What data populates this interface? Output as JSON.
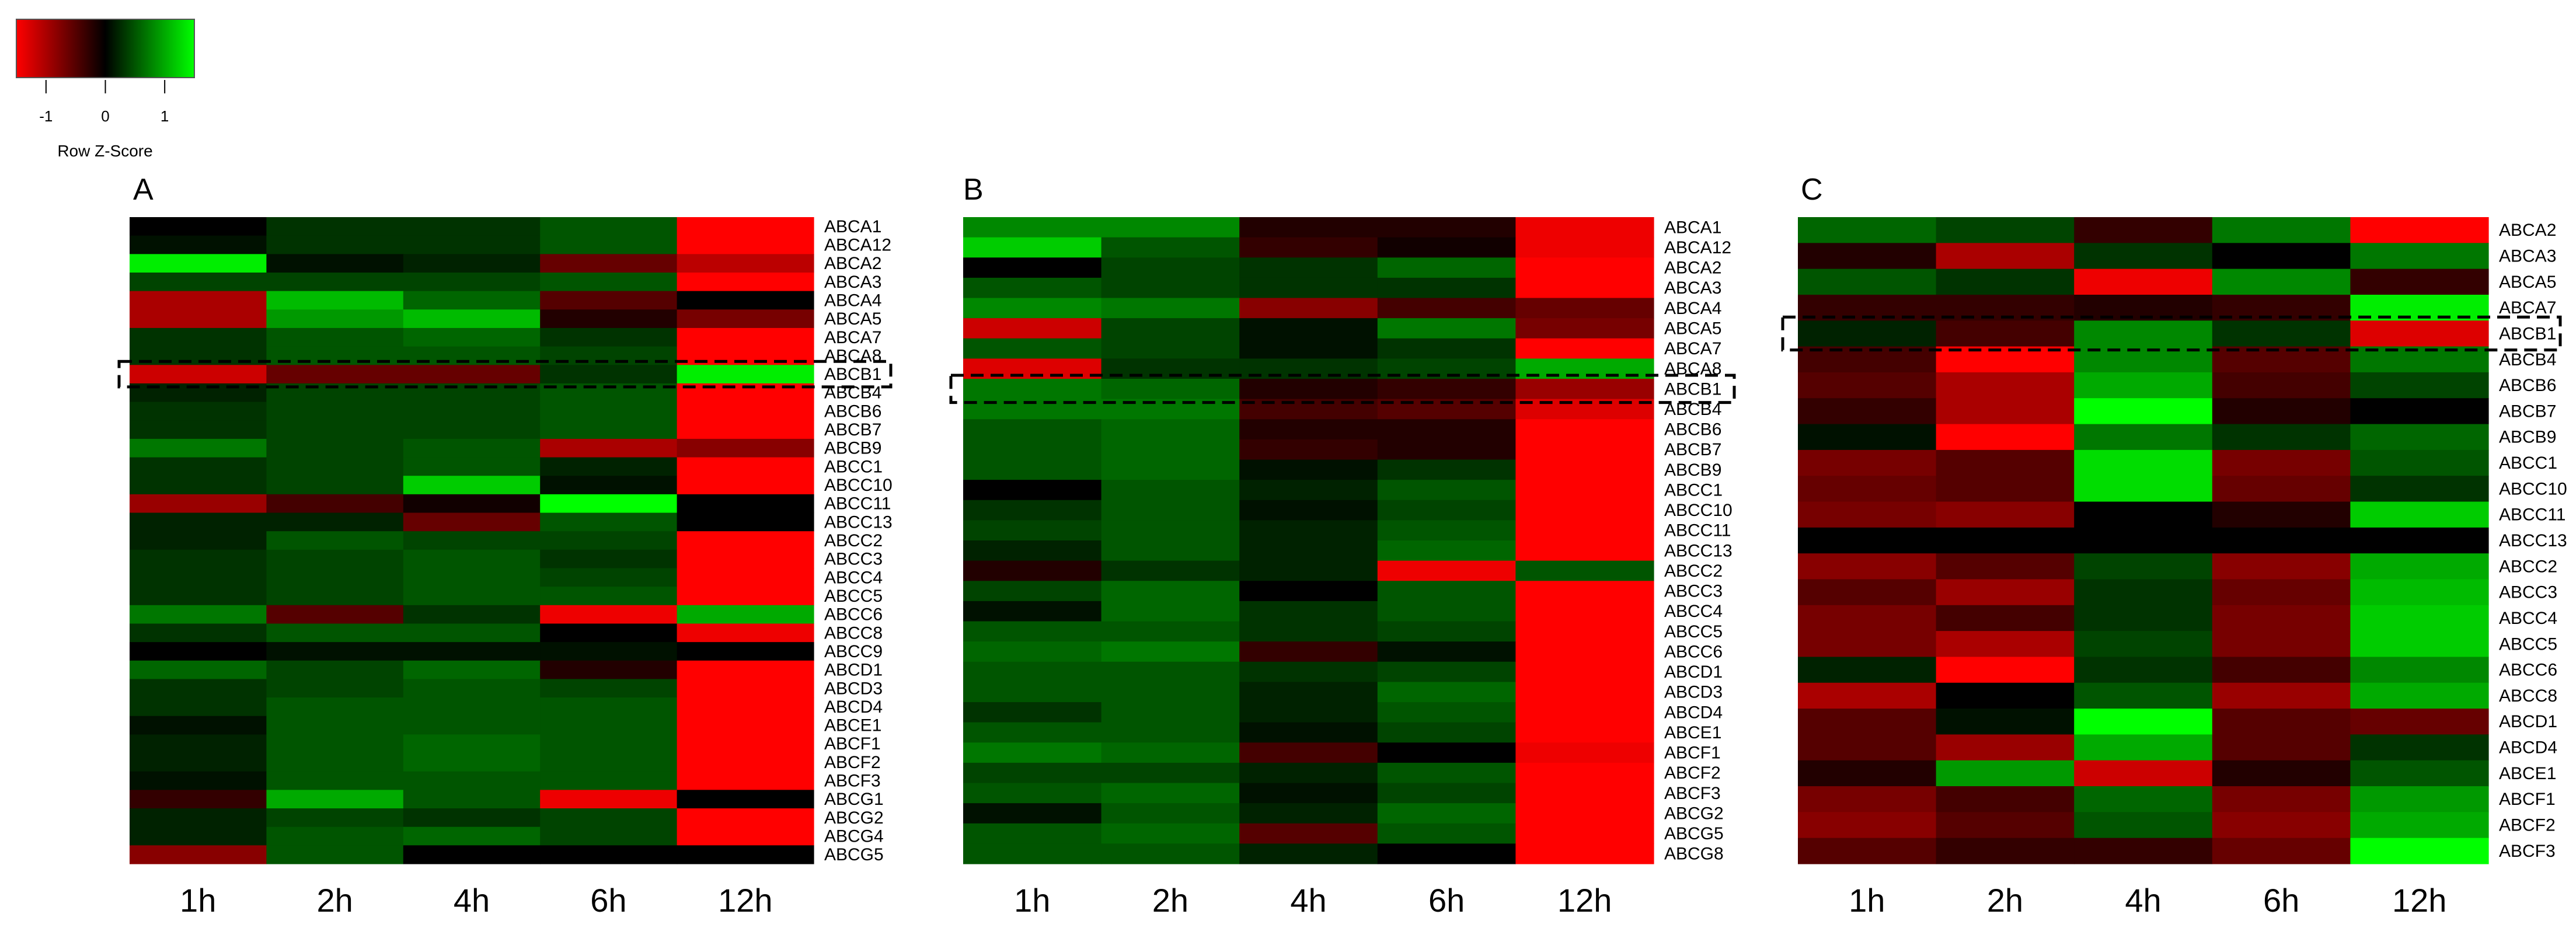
{
  "legend": {
    "title": "Row Z-Score",
    "ticks": [
      -1,
      0,
      1
    ],
    "range": [
      -1.5,
      1.5
    ],
    "low_color": "#ff0000",
    "mid_color": "#000000",
    "high_color": "#00ff00"
  },
  "chart_data": [
    {
      "type": "heatmap",
      "panel_label": "A",
      "columns": [
        "1h",
        "2h",
        "4h",
        "6h",
        "12h"
      ],
      "highlight_row": "ABCB1",
      "rows": [
        "ABCA1",
        "ABCA12",
        "ABCA2",
        "ABCA3",
        "ABCA4",
        "ABCA5",
        "ABCA7",
        "ABCA8",
        "ABCB1",
        "ABCB4",
        "ABCB6",
        "ABCB7",
        "ABCB9",
        "ABCC1",
        "ABCC10",
        "ABCC11",
        "ABCC13",
        "ABCC2",
        "ABCC3",
        "ABCC4",
        "ABCC5",
        "ABCC6",
        "ABCC8",
        "ABCC9",
        "ABCD1",
        "ABCD3",
        "ABCD4",
        "ABCE1",
        "ABCF1",
        "ABCF2",
        "ABCF3",
        "ABCG1",
        "ABCG2",
        "ABCG4",
        "ABCG5"
      ],
      "values": [
        [
          0.0,
          0.3,
          0.3,
          0.5,
          -1.8
        ],
        [
          0.1,
          0.3,
          0.3,
          0.5,
          -1.8
        ],
        [
          1.4,
          0.1,
          0.2,
          -0.6,
          -1.1
        ],
        [
          0.4,
          0.4,
          0.4,
          0.5,
          -1.8
        ],
        [
          -1.0,
          1.1,
          0.6,
          -0.5,
          0.0
        ],
        [
          -1.0,
          0.9,
          1.1,
          -0.2,
          -0.7
        ],
        [
          0.3,
          0.5,
          0.6,
          0.3,
          -1.7
        ],
        [
          0.3,
          0.5,
          0.5,
          0.4,
          -1.7
        ],
        [
          -1.2,
          -0.6,
          -0.6,
          0.3,
          1.4
        ],
        [
          0.2,
          0.4,
          0.4,
          0.5,
          -1.8
        ],
        [
          0.3,
          0.4,
          0.4,
          0.5,
          -1.8
        ],
        [
          0.3,
          0.4,
          0.4,
          0.5,
          -1.8
        ],
        [
          0.7,
          0.4,
          0.5,
          -1.0,
          -0.8
        ],
        [
          0.3,
          0.4,
          0.5,
          0.2,
          -1.7
        ],
        [
          0.3,
          0.4,
          1.2,
          0.1,
          -1.6
        ],
        [
          -0.9,
          -0.4,
          -0.1,
          1.5,
          0.0
        ],
        [
          0.2,
          0.2,
          -0.6,
          0.5,
          0.0
        ],
        [
          0.2,
          0.5,
          0.4,
          0.4,
          -1.8
        ],
        [
          0.3,
          0.4,
          0.5,
          0.3,
          -1.8
        ],
        [
          0.3,
          0.4,
          0.5,
          0.4,
          -1.8
        ],
        [
          0.3,
          0.4,
          0.5,
          0.5,
          -1.8
        ],
        [
          0.7,
          -0.5,
          0.3,
          -1.4,
          1.0
        ],
        [
          0.3,
          0.5,
          0.5,
          0.0,
          -1.4
        ],
        [
          0.0,
          0.1,
          0.1,
          0.1,
          0.0
        ],
        [
          0.6,
          0.4,
          0.6,
          -0.2,
          -1.6
        ],
        [
          0.3,
          0.4,
          0.5,
          0.4,
          -1.8
        ],
        [
          0.3,
          0.5,
          0.5,
          0.5,
          -1.8
        ],
        [
          0.1,
          0.5,
          0.5,
          0.5,
          -1.8
        ],
        [
          0.2,
          0.5,
          0.6,
          0.5,
          -1.8
        ],
        [
          0.2,
          0.5,
          0.6,
          0.5,
          -1.8
        ],
        [
          0.1,
          0.5,
          0.5,
          0.5,
          -1.8
        ],
        [
          -0.3,
          1.0,
          0.5,
          -1.4,
          0.0
        ],
        [
          0.2,
          0.4,
          0.3,
          0.4,
          -1.8
        ],
        [
          0.2,
          0.5,
          0.6,
          0.4,
          -1.8
        ],
        [
          -0.8,
          0.5,
          0.0,
          0.0,
          0.0
        ]
      ]
    },
    {
      "type": "heatmap",
      "panel_label": "B",
      "columns": [
        "1h",
        "2h",
        "4h",
        "6h",
        "12h"
      ],
      "highlight_row": "ABCB1",
      "rows": [
        "ABCA1",
        "ABCA12",
        "ABCA2",
        "ABCA3",
        "ABCA4",
        "ABCA5",
        "ABCA7",
        "ABCA8",
        "ABCB1",
        "ABCB4",
        "ABCB6",
        "ABCB7",
        "ABCB9",
        "ABCC1",
        "ABCC10",
        "ABCC11",
        "ABCC13",
        "ABCC2",
        "ABCC3",
        "ABCC4",
        "ABCC5",
        "ABCC6",
        "ABCD1",
        "ABCD3",
        "ABCD4",
        "ABCE1",
        "ABCF1",
        "ABCF2",
        "ABCF3",
        "ABCG2",
        "ABCG5",
        "ABCG8"
      ],
      "values": [
        [
          0.8,
          0.8,
          -0.2,
          -0.2,
          -1.4
        ],
        [
          1.2,
          0.5,
          -0.3,
          -0.1,
          -1.4
        ],
        [
          0.0,
          0.4,
          0.3,
          0.6,
          -1.6
        ],
        [
          0.5,
          0.4,
          0.3,
          0.3,
          -1.6
        ],
        [
          0.8,
          0.7,
          -0.8,
          -0.4,
          -0.6
        ],
        [
          -1.2,
          0.4,
          0.1,
          0.7,
          -0.7
        ],
        [
          0.5,
          0.4,
          0.1,
          0.3,
          -1.6
        ],
        [
          -1.3,
          0.3,
          0.3,
          0.4,
          1.0
        ],
        [
          0.7,
          0.6,
          -0.2,
          -0.3,
          -0.9
        ],
        [
          0.7,
          0.7,
          -0.4,
          -0.5,
          -1.3
        ],
        [
          0.5,
          0.6,
          -0.2,
          -0.2,
          -1.5
        ],
        [
          0.5,
          0.6,
          -0.3,
          -0.2,
          -1.5
        ],
        [
          0.5,
          0.6,
          0.1,
          0.3,
          -1.5
        ],
        [
          0.0,
          0.5,
          0.2,
          0.5,
          -1.6
        ],
        [
          0.3,
          0.5,
          0.1,
          0.4,
          -1.6
        ],
        [
          0.4,
          0.5,
          0.2,
          0.5,
          -1.6
        ],
        [
          0.2,
          0.5,
          0.2,
          0.6,
          -1.6
        ],
        [
          -0.2,
          0.3,
          0.2,
          -1.4,
          0.5
        ],
        [
          0.4,
          0.6,
          0.0,
          0.5,
          -1.6
        ],
        [
          0.1,
          0.6,
          0.3,
          0.5,
          -1.6
        ],
        [
          0.5,
          0.5,
          0.3,
          0.4,
          -1.6
        ],
        [
          0.6,
          0.7,
          -0.3,
          0.1,
          -1.5
        ],
        [
          0.5,
          0.5,
          0.3,
          0.4,
          -1.6
        ],
        [
          0.5,
          0.5,
          0.2,
          0.6,
          -1.6
        ],
        [
          0.3,
          0.5,
          0.2,
          0.5,
          -1.6
        ],
        [
          0.5,
          0.5,
          0.1,
          0.4,
          -1.6
        ],
        [
          0.7,
          0.6,
          -0.4,
          0.0,
          -1.4
        ],
        [
          0.4,
          0.4,
          0.2,
          0.5,
          -1.6
        ],
        [
          0.5,
          0.6,
          0.1,
          0.4,
          -1.6
        ],
        [
          0.1,
          0.5,
          0.2,
          0.6,
          -1.6
        ],
        [
          0.5,
          0.6,
          -0.5,
          0.5,
          -1.6
        ],
        [
          0.5,
          0.5,
          0.2,
          0.0,
          -1.6
        ]
      ]
    },
    {
      "type": "heatmap",
      "panel_label": "C",
      "columns": [
        "1h",
        "2h",
        "4h",
        "6h",
        "12h"
      ],
      "highlight_row": "ABCB1",
      "rows": [
        "ABCA2",
        "ABCA3",
        "ABCA5",
        "ABCA7",
        "ABCB1",
        "ABCB4",
        "ABCB6",
        "ABCB7",
        "ABCB9",
        "ABCC1",
        "ABCC10",
        "ABCC11",
        "ABCC13",
        "ABCC2",
        "ABCC3",
        "ABCC4",
        "ABCC5",
        "ABCC6",
        "ABCC8",
        "ABCD1",
        "ABCD4",
        "ABCE1",
        "ABCF1",
        "ABCF2",
        "ABCF3"
      ],
      "values": [
        [
          0.6,
          0.4,
          -0.3,
          0.7,
          -1.5
        ],
        [
          -0.2,
          -1.0,
          0.3,
          0.0,
          0.7
        ],
        [
          0.5,
          0.3,
          -1.4,
          0.8,
          -0.3
        ],
        [
          -0.3,
          -0.3,
          -0.2,
          -0.3,
          1.4
        ],
        [
          0.2,
          -0.4,
          0.8,
          0.3,
          -1.3
        ],
        [
          -0.4,
          -1.5,
          0.8,
          -0.5,
          0.7
        ],
        [
          -0.5,
          -1.0,
          1.0,
          -0.4,
          0.4
        ],
        [
          -0.3,
          -1.0,
          1.5,
          -0.2,
          0.0
        ],
        [
          0.1,
          -1.6,
          0.7,
          0.3,
          0.6
        ],
        [
          -0.7,
          -0.5,
          1.3,
          -0.7,
          0.5
        ],
        [
          -0.6,
          -0.5,
          1.3,
          -0.6,
          0.3
        ],
        [
          -0.7,
          -0.8,
          0.0,
          -0.2,
          1.2
        ],
        [
          0.0,
          0.0,
          0.0,
          0.0,
          0.0
        ],
        [
          -0.8,
          -0.5,
          0.4,
          -0.8,
          1.0
        ],
        [
          -0.5,
          -0.9,
          0.3,
          -0.6,
          1.1
        ],
        [
          -0.7,
          -0.4,
          0.3,
          -0.7,
          1.2
        ],
        [
          -0.7,
          -1.0,
          0.4,
          -0.7,
          1.2
        ],
        [
          0.2,
          -1.6,
          0.3,
          -0.4,
          0.8
        ],
        [
          -1.0,
          0.0,
          0.5,
          -0.9,
          1.0
        ],
        [
          -0.5,
          0.1,
          1.5,
          -0.5,
          -0.6
        ],
        [
          -0.5,
          -0.9,
          1.0,
          -0.5,
          0.3
        ],
        [
          -0.2,
          0.9,
          -1.2,
          -0.2,
          0.5
        ],
        [
          -0.7,
          -0.4,
          0.6,
          -0.7,
          0.9
        ],
        [
          -0.8,
          -0.5,
          0.5,
          -0.8,
          1.0
        ],
        [
          -0.5,
          -0.3,
          -0.3,
          -0.6,
          1.5
        ]
      ]
    }
  ]
}
